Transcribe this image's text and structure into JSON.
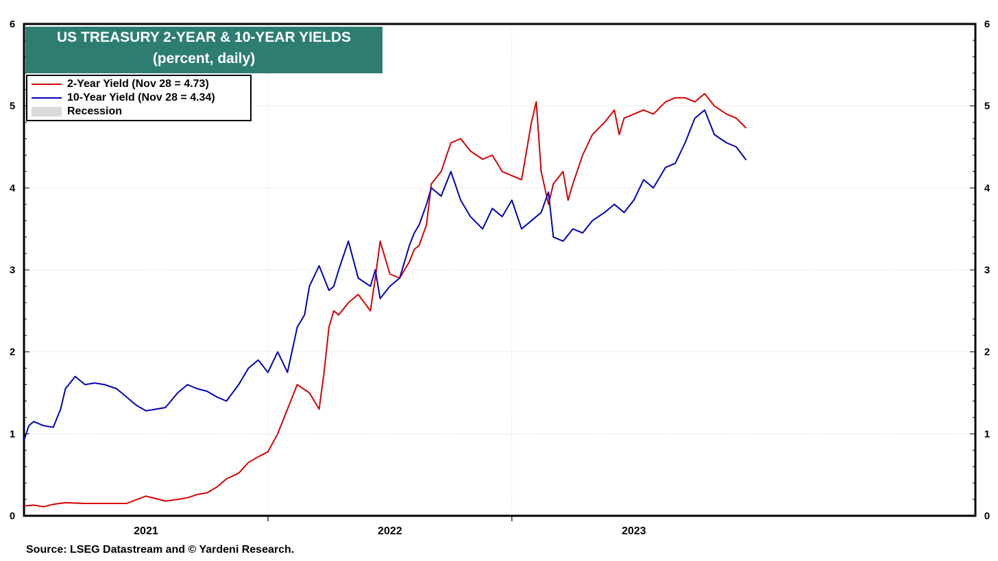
{
  "title": {
    "line1": "US TREASURY 2-YEAR & 10-YEAR YIELDS",
    "line2": "(percent, daily)"
  },
  "legend": {
    "two_year": "2-Year Yield (Nov 28 = 4.73)",
    "ten_year": "10-Year Yield (Nov 28 = 4.34)",
    "recession": "Recession"
  },
  "source": "Source: LSEG Datastream and © Yardeni Research.",
  "colors": {
    "two_year": "#d40000",
    "ten_year": "#0000b4",
    "title_bg": "#2e7d73",
    "recession": "#d9d9d9"
  },
  "chart_data": {
    "type": "line",
    "title": "US TREASURY 2-YEAR & 10-YEAR YIELDS",
    "subtitle": "(percent, daily)",
    "xlabel": "",
    "ylabel": "",
    "xlim": [
      2020.0,
      2023.0
    ],
    "ylim": [
      0,
      6
    ],
    "yticks": [
      0,
      1,
      2,
      3,
      4,
      5,
      6
    ],
    "xtick_labels": [
      "2021",
      "2022",
      "2023"
    ],
    "grid": true,
    "legend_position": "top-left",
    "series": [
      {
        "name": "2-Year Yield (Nov 28 = 4.73)",
        "color": "#d40000",
        "x": [
          2020.0,
          2020.04,
          2020.08,
          2020.12,
          2020.17,
          2020.25,
          2020.33,
          2020.42,
          2020.5,
          2020.54,
          2020.58,
          2020.63,
          2020.67,
          2020.71,
          2020.75,
          2020.79,
          2020.83,
          2020.88,
          2020.92,
          2020.96,
          2021.0,
          2021.04,
          2021.08,
          2021.12,
          2021.17,
          2021.21,
          2021.23,
          2021.25,
          2021.27,
          2021.29,
          2021.33,
          2021.37,
          2021.42,
          2021.44,
          2021.46,
          2021.5,
          2021.54,
          2021.58,
          2021.6,
          2021.62,
          2021.65,
          2021.67,
          2021.71,
          2021.75,
          2021.79,
          2021.83,
          2021.88,
          2021.92,
          2021.96,
          2022.0,
          2022.04,
          2022.08,
          2022.1,
          2022.12,
          2022.15,
          2022.17,
          2022.21,
          2022.23,
          2022.25,
          2022.29,
          2022.33,
          2022.38,
          2022.42,
          2022.44,
          2022.46,
          2022.5,
          2022.54,
          2022.58,
          2022.63,
          2022.67,
          2022.71,
          2022.75,
          2022.79,
          2022.83,
          2022.88,
          2022.92,
          2022.96
        ],
        "values": [
          0.12,
          0.13,
          0.11,
          0.14,
          0.16,
          0.15,
          0.15,
          0.15,
          0.24,
          0.21,
          0.18,
          0.2,
          0.22,
          0.26,
          0.28,
          0.35,
          0.45,
          0.52,
          0.65,
          0.72,
          0.78,
          1.0,
          1.3,
          1.6,
          1.5,
          1.3,
          1.75,
          2.3,
          2.5,
          2.45,
          2.6,
          2.7,
          2.5,
          2.9,
          3.35,
          2.95,
          2.9,
          3.1,
          3.25,
          3.3,
          3.55,
          4.05,
          4.2,
          4.55,
          4.6,
          4.45,
          4.35,
          4.4,
          4.2,
          4.15,
          4.1,
          4.8,
          5.05,
          4.2,
          3.8,
          4.05,
          4.2,
          3.85,
          4.05,
          4.4,
          4.65,
          4.8,
          4.95,
          4.65,
          4.85,
          4.9,
          4.95,
          4.9,
          5.05,
          5.1,
          5.1,
          5.05,
          5.15,
          5.0,
          4.9,
          4.85,
          4.73
        ]
      },
      {
        "name": "10-Year Yield (Nov 28 = 4.34)",
        "color": "#0000b4",
        "x": [
          2020.0,
          2020.02,
          2020.04,
          2020.08,
          2020.12,
          2020.15,
          2020.17,
          2020.21,
          2020.25,
          2020.29,
          2020.33,
          2020.38,
          2020.42,
          2020.46,
          2020.5,
          2020.54,
          2020.58,
          2020.63,
          2020.67,
          2020.71,
          2020.75,
          2020.79,
          2020.83,
          2020.88,
          2020.92,
          2020.96,
          2021.0,
          2021.04,
          2021.08,
          2021.12,
          2021.15,
          2021.17,
          2021.21,
          2021.25,
          2021.27,
          2021.29,
          2021.33,
          2021.37,
          2021.42,
          2021.44,
          2021.46,
          2021.5,
          2021.54,
          2021.58,
          2021.6,
          2021.62,
          2021.65,
          2021.67,
          2021.71,
          2021.75,
          2021.79,
          2021.83,
          2021.88,
          2021.92,
          2021.96,
          2022.0,
          2022.04,
          2022.08,
          2022.12,
          2022.15,
          2022.17,
          2022.21,
          2022.25,
          2022.29,
          2022.33,
          2022.38,
          2022.42,
          2022.46,
          2022.5,
          2022.54,
          2022.58,
          2022.63,
          2022.67,
          2022.71,
          2022.75,
          2022.79,
          2022.83,
          2022.88,
          2022.92,
          2022.96
        ],
        "values": [
          0.92,
          1.1,
          1.15,
          1.1,
          1.08,
          1.3,
          1.55,
          1.7,
          1.6,
          1.62,
          1.6,
          1.55,
          1.45,
          1.35,
          1.28,
          1.3,
          1.32,
          1.5,
          1.6,
          1.55,
          1.52,
          1.45,
          1.4,
          1.6,
          1.8,
          1.9,
          1.75,
          2.0,
          1.75,
          2.3,
          2.45,
          2.8,
          3.05,
          2.75,
          2.8,
          3.0,
          3.35,
          2.9,
          2.8,
          3.0,
          2.65,
          2.8,
          2.9,
          3.3,
          3.45,
          3.55,
          3.8,
          4.0,
          3.9,
          4.2,
          3.85,
          3.65,
          3.5,
          3.75,
          3.65,
          3.85,
          3.5,
          3.6,
          3.7,
          3.95,
          3.4,
          3.35,
          3.5,
          3.45,
          3.6,
          3.7,
          3.8,
          3.7,
          3.85,
          4.1,
          4.0,
          4.25,
          4.3,
          4.55,
          4.85,
          4.95,
          4.65,
          4.55,
          4.5,
          4.34
        ]
      }
    ]
  }
}
